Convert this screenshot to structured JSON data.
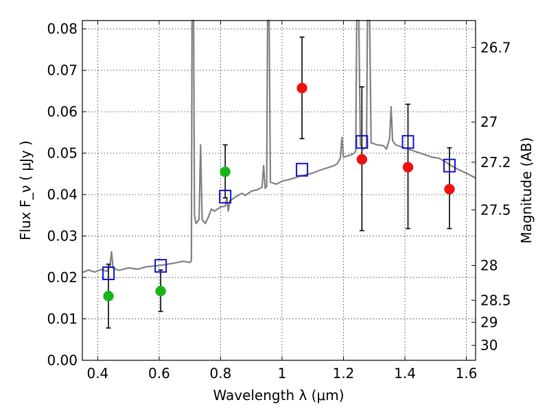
{
  "chart_data": {
    "type": "scatter",
    "xlabel": "Wavelength  λ (μm)",
    "ylabel": "Flux  F_ν  ( μJy )",
    "ylabel_right": "Magnitude (AB)",
    "xlim": [
      0.35,
      1.63
    ],
    "ylim": [
      0.0,
      0.082
    ],
    "grid": true,
    "x_ticks": [
      0.4,
      0.6,
      0.8,
      1.0,
      1.2,
      1.4,
      1.6
    ],
    "x_tick_labels": [
      "0.4",
      "0.6",
      "0.8",
      "1",
      "1.2",
      "1.4",
      "1.6"
    ],
    "y_ticks": [
      0.0,
      0.01,
      0.02,
      0.03,
      0.04,
      0.05,
      0.06,
      0.07,
      0.08
    ],
    "y_tick_labels": [
      "0.00",
      "0.01",
      "0.02",
      "0.03",
      "0.04",
      "0.05",
      "0.06",
      "0.07",
      "0.08"
    ],
    "right_axis_ticks": [
      {
        "label": "26.7",
        "flux": 0.0755
      },
      {
        "label": "27",
        "flux": 0.0575
      },
      {
        "label": "27.2",
        "flux": 0.0478
      },
      {
        "label": "27.5",
        "flux": 0.0363
      },
      {
        "label": "28",
        "flux": 0.0229
      },
      {
        "label": "28.5",
        "flux": 0.0145
      },
      {
        "label": "29",
        "flux": 0.0092
      },
      {
        "label": "30",
        "flux": 0.0036
      }
    ],
    "series": [
      {
        "marker": "circle",
        "color": "#18b418",
        "points": [
          {
            "x": 0.435,
            "y": 0.0155,
            "yerr_low": 0.0078,
            "yerr_high": 0.0232
          },
          {
            "x": 0.605,
            "y": 0.0167,
            "yerr_low": 0.0118,
            "yerr_high": 0.0218
          },
          {
            "x": 0.815,
            "y": 0.0455,
            "yerr_low": 0.0392,
            "yerr_high": 0.052
          }
        ]
      },
      {
        "marker": "circle",
        "color": "#ee1111",
        "points": [
          {
            "x": 1.065,
            "y": 0.0657,
            "yerr_low": 0.0535,
            "yerr_high": 0.078
          },
          {
            "x": 1.26,
            "y": 0.0485,
            "yerr_low": 0.0313,
            "yerr_high": 0.066
          },
          {
            "x": 1.41,
            "y": 0.0466,
            "yerr_low": 0.0318,
            "yerr_high": 0.0618
          },
          {
            "x": 1.545,
            "y": 0.0413,
            "yerr_low": 0.0318,
            "yerr_high": 0.0513
          }
        ]
      },
      {
        "marker": "square",
        "color": "#1111cc",
        "points": [
          {
            "x": 0.435,
            "y": 0.021
          },
          {
            "x": 0.605,
            "y": 0.0228
          },
          {
            "x": 0.815,
            "y": 0.0395
          },
          {
            "x": 1.065,
            "y": 0.046
          },
          {
            "x": 1.26,
            "y": 0.0527
          },
          {
            "x": 1.41,
            "y": 0.0527
          },
          {
            "x": 1.545,
            "y": 0.047
          }
        ]
      },
      {
        "type": "line",
        "color": "#808080",
        "points": [
          [
            0.35,
            0.0212
          ],
          [
            0.37,
            0.0218
          ],
          [
            0.39,
            0.0213
          ],
          [
            0.41,
            0.0219
          ],
          [
            0.43,
            0.0215
          ],
          [
            0.44,
            0.0228
          ],
          [
            0.445,
            0.0262
          ],
          [
            0.45,
            0.0222
          ],
          [
            0.47,
            0.0217
          ],
          [
            0.5,
            0.0223
          ],
          [
            0.53,
            0.022
          ],
          [
            0.56,
            0.0226
          ],
          [
            0.59,
            0.0228
          ],
          [
            0.62,
            0.0231
          ],
          [
            0.65,
            0.0235
          ],
          [
            0.68,
            0.0239
          ],
          [
            0.7,
            0.0236
          ],
          [
            0.705,
            0.024
          ],
          [
            0.707,
            0.082
          ],
          [
            0.712,
            0.082
          ],
          [
            0.715,
            0.035
          ],
          [
            0.72,
            0.033
          ],
          [
            0.73,
            0.034
          ],
          [
            0.735,
            0.052
          ],
          [
            0.74,
            0.034
          ],
          [
            0.75,
            0.033
          ],
          [
            0.76,
            0.0345
          ],
          [
            0.77,
            0.0365
          ],
          [
            0.78,
            0.036
          ],
          [
            0.8,
            0.037
          ],
          [
            0.815,
            0.0372
          ],
          [
            0.82,
            0.0392
          ],
          [
            0.825,
            0.036
          ],
          [
            0.83,
            0.0385
          ],
          [
            0.85,
            0.0395
          ],
          [
            0.87,
            0.0403
          ],
          [
            0.88,
            0.0398
          ],
          [
            0.9,
            0.0408
          ],
          [
            0.92,
            0.0412
          ],
          [
            0.935,
            0.0418
          ],
          [
            0.94,
            0.047
          ],
          [
            0.945,
            0.0415
          ],
          [
            0.95,
            0.042
          ],
          [
            0.953,
            0.082
          ],
          [
            0.958,
            0.082
          ],
          [
            0.962,
            0.043
          ],
          [
            0.98,
            0.0425
          ],
          [
            1.0,
            0.0432
          ],
          [
            1.02,
            0.0436
          ],
          [
            1.04,
            0.044
          ],
          [
            1.06,
            0.0445
          ],
          [
            1.08,
            0.0448
          ],
          [
            1.1,
            0.0452
          ],
          [
            1.12,
            0.0458
          ],
          [
            1.15,
            0.0465
          ],
          [
            1.17,
            0.047
          ],
          [
            1.18,
            0.0475
          ],
          [
            1.19,
            0.0488
          ],
          [
            1.195,
            0.0538
          ],
          [
            1.2,
            0.049
          ],
          [
            1.22,
            0.0495
          ],
          [
            1.235,
            0.05
          ],
          [
            1.24,
            0.0505
          ],
          [
            1.243,
            0.082
          ],
          [
            1.25,
            0.082
          ],
          [
            1.255,
            0.052
          ],
          [
            1.265,
            0.051
          ],
          [
            1.275,
            0.0515
          ],
          [
            1.278,
            0.082
          ],
          [
            1.285,
            0.082
          ],
          [
            1.29,
            0.0525
          ],
          [
            1.31,
            0.052
          ],
          [
            1.33,
            0.0518
          ],
          [
            1.34,
            0.051
          ],
          [
            1.35,
            0.0535
          ],
          [
            1.355,
            0.0612
          ],
          [
            1.36,
            0.053
          ],
          [
            1.37,
            0.052
          ],
          [
            1.39,
            0.0515
          ],
          [
            1.41,
            0.051
          ],
          [
            1.43,
            0.0505
          ],
          [
            1.45,
            0.05
          ],
          [
            1.47,
            0.0495
          ],
          [
            1.49,
            0.049
          ],
          [
            1.51,
            0.0488
          ],
          [
            1.53,
            0.048
          ],
          [
            1.55,
            0.047
          ],
          [
            1.57,
            0.0462
          ],
          [
            1.59,
            0.0455
          ],
          [
            1.61,
            0.0448
          ],
          [
            1.63,
            0.044
          ]
        ]
      }
    ]
  }
}
